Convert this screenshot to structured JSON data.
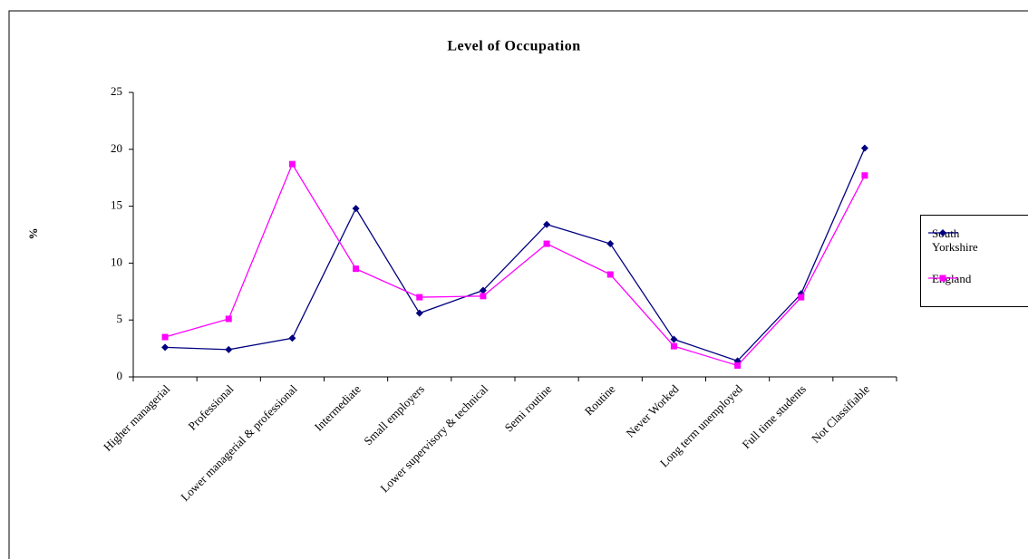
{
  "chart_data": {
    "type": "line",
    "title": "Level of Occupation",
    "y_label": "%",
    "categories": [
      "Higher managerial",
      "Professional",
      "Lower managerial & professional",
      "Intermediate",
      "Small employers",
      "Lower supervisory  & technical",
      "Semi routine",
      "Routine",
      "Never Worked",
      "Long term unemployed",
      "Full time students",
      "Not Classifiable"
    ],
    "series": [
      {
        "name": "South Yorkshire",
        "color": "#000080",
        "marker": "diamond",
        "values": [
          2.6,
          2.4,
          3.4,
          14.8,
          5.6,
          7.6,
          13.4,
          11.7,
          3.3,
          1.4,
          7.3,
          20.1
        ]
      },
      {
        "name": "England",
        "color": "#ff00ff",
        "marker": "square",
        "values": [
          3.5,
          5.1,
          18.7,
          9.5,
          7.0,
          7.1,
          11.7,
          9.0,
          2.7,
          1.0,
          7.0,
          17.7
        ]
      }
    ],
    "ylim": [
      0,
      25
    ],
    "yticks": [
      0,
      5,
      10,
      15,
      20,
      25
    ],
    "grid": false,
    "legend": "right"
  }
}
